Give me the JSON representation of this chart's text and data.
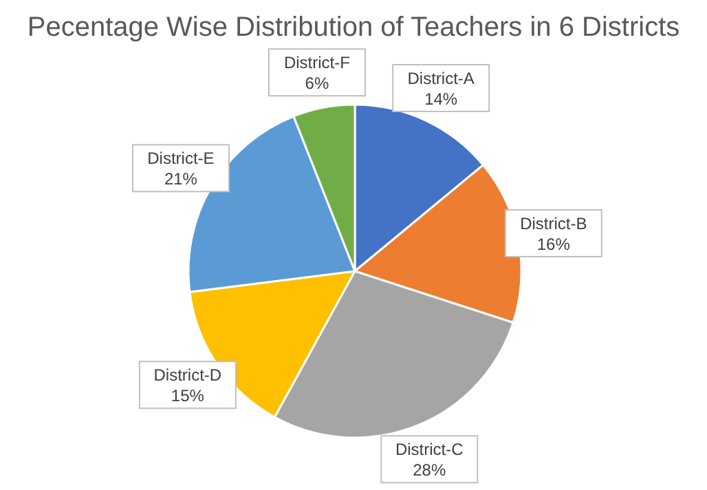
{
  "chart_data": {
    "type": "pie",
    "title": "Pecentage Wise Distribution of Teachers in 6 Districts",
    "categories": [
      "District-A",
      "District-B",
      "District-C",
      "District-D",
      "District-E",
      "District-F"
    ],
    "values": [
      14,
      16,
      28,
      15,
      21,
      6
    ],
    "colors": [
      "#4472c4",
      "#ed7d31",
      "#a5a5a5",
      "#ffc000",
      "#5b9bd5",
      "#70ad47"
    ],
    "value_labels": [
      "14%",
      "16%",
      "28%",
      "15%",
      "21%",
      "6%"
    ],
    "legend": false
  }
}
